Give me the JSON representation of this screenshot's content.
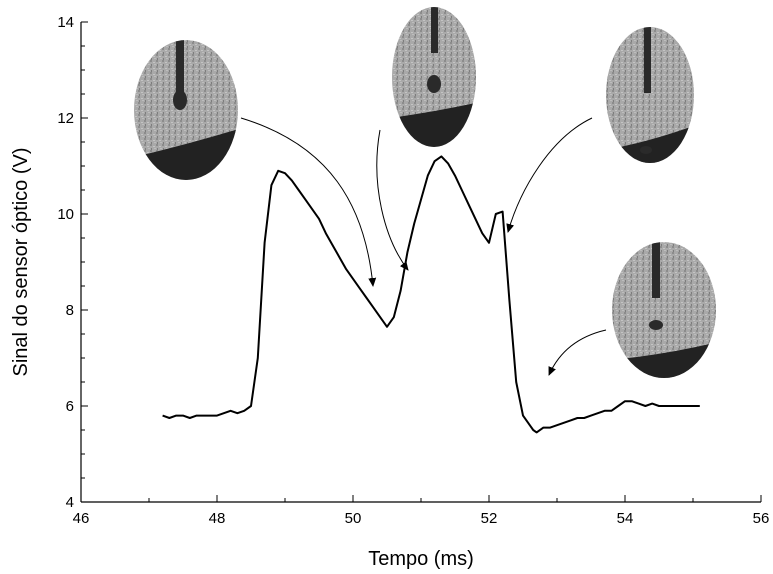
{
  "chart_data": {
    "type": "line",
    "title": "",
    "xlabel": "Tempo (ms)",
    "ylabel": "Sinal do sensor óptico (V)",
    "xlim": [
      46,
      56
    ],
    "ylim": [
      4,
      14
    ],
    "x_ticks": [
      46,
      48,
      50,
      52,
      54,
      56
    ],
    "y_ticks": [
      4,
      6,
      8,
      10,
      12,
      14
    ],
    "grid": false,
    "legend": "none",
    "line_color": "#000000",
    "series": [
      {
        "x": [
          47.2,
          47.3,
          47.4,
          47.5,
          47.6,
          47.7,
          47.8,
          47.9,
          48.0,
          48.1,
          48.2,
          48.3,
          48.4,
          48.5,
          48.55,
          48.6,
          48.7,
          48.8,
          48.9,
          49.0,
          49.1,
          49.2,
          49.3,
          49.4,
          49.5,
          49.6,
          49.7,
          49.8,
          49.9,
          50.0,
          50.1,
          50.2,
          50.3,
          50.4,
          50.5,
          50.6,
          50.7,
          50.8,
          50.9,
          51.0,
          51.1,
          51.2,
          51.3,
          51.4,
          51.5,
          51.6,
          51.7,
          51.8,
          51.9,
          52.0,
          52.1,
          52.2,
          52.3,
          52.4,
          52.5,
          52.6,
          52.65,
          52.7,
          52.8,
          52.9,
          53.0,
          53.1,
          53.2,
          53.3,
          53.4,
          53.5,
          53.6,
          53.7,
          53.8,
          53.9,
          54.0,
          54.1,
          54.2,
          54.3,
          54.4,
          54.5,
          54.6,
          54.7,
          54.8,
          54.9,
          55.0,
          55.1
        ],
        "y": [
          5.8,
          5.75,
          5.8,
          5.8,
          5.75,
          5.8,
          5.8,
          5.8,
          5.8,
          5.85,
          5.9,
          5.85,
          5.9,
          6.0,
          6.5,
          7.0,
          9.4,
          10.6,
          10.9,
          10.85,
          10.7,
          10.5,
          10.3,
          10.1,
          9.9,
          9.6,
          9.35,
          9.1,
          8.85,
          8.65,
          8.45,
          8.25,
          8.05,
          7.85,
          7.65,
          7.85,
          8.4,
          9.2,
          9.8,
          10.3,
          10.8,
          11.1,
          11.2,
          11.05,
          10.8,
          10.5,
          10.2,
          9.9,
          9.6,
          9.4,
          10.0,
          10.05,
          8.2,
          6.5,
          5.8,
          5.6,
          5.5,
          5.45,
          5.55,
          5.55,
          5.6,
          5.65,
          5.7,
          5.75,
          5.75,
          5.8,
          5.85,
          5.9,
          5.9,
          6.0,
          6.1,
          6.1,
          6.05,
          6.0,
          6.05,
          6.0,
          6.0,
          6.0,
          6.0,
          6.0,
          6.0,
          6.0
        ]
      }
    ]
  }
}
